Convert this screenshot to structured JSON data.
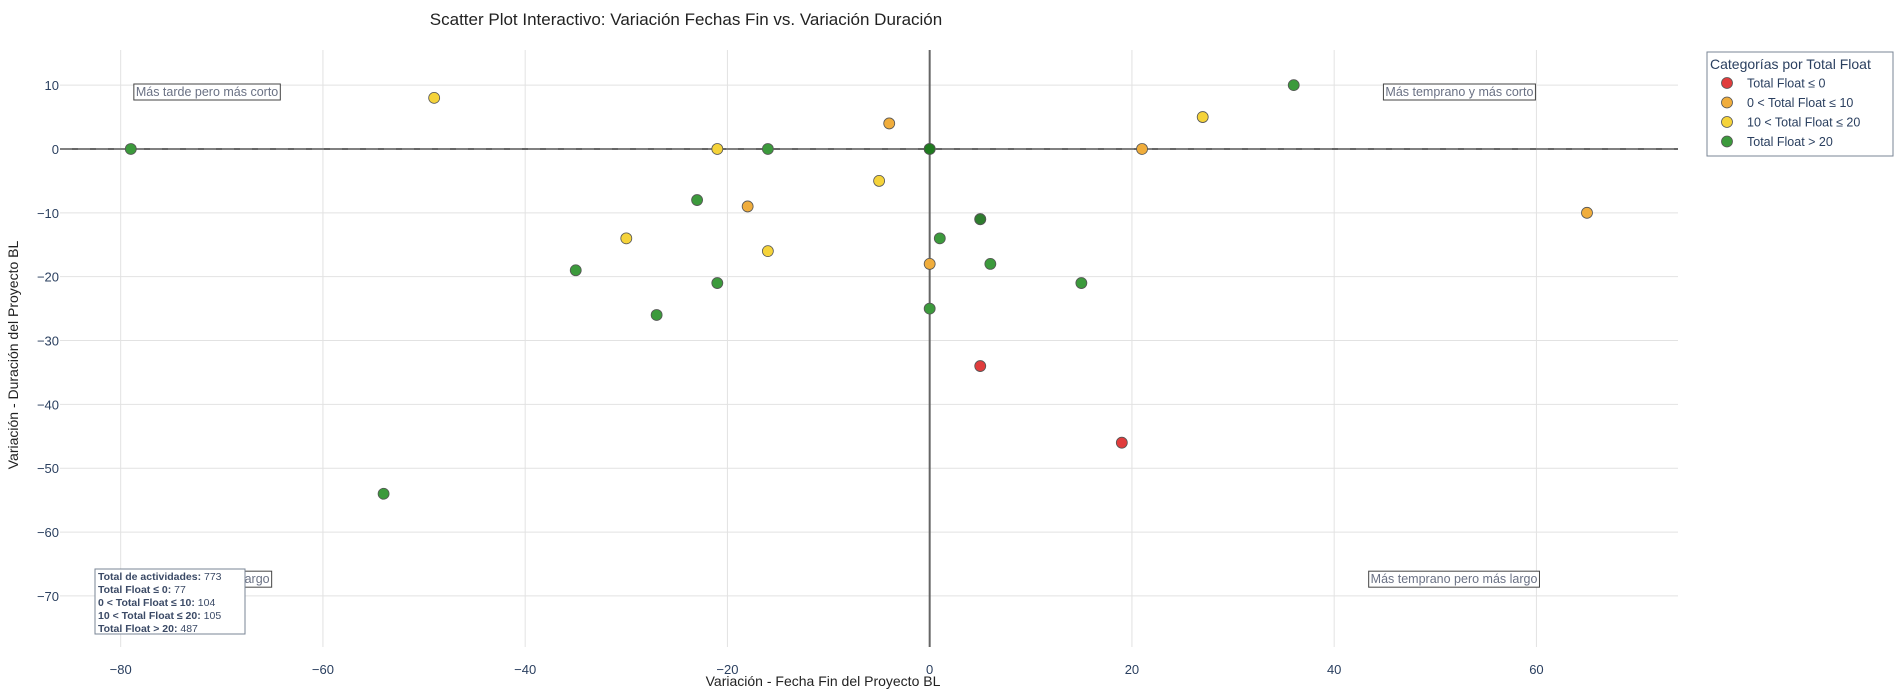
{
  "chart_data": {
    "type": "scatter",
    "title": "Scatter Plot Interactivo: Variación Fechas Fin vs. Variación Duración",
    "xlabel": "Variación - Fecha Fin del Proyecto BL",
    "ylabel": "Variación - Duración del Proyecto BL",
    "xlim": [
      -86,
      74
    ],
    "ylim": [
      -78,
      15.5
    ],
    "x_ticks": [
      -80,
      -60,
      -40,
      -20,
      0,
      20,
      40,
      60
    ],
    "y_ticks": [
      10,
      0,
      -10,
      -20,
      -30,
      -40,
      -50,
      -60,
      -70
    ],
    "grid": true,
    "legend_position": "right",
    "legend_title": "Categorías por Total Float",
    "series": [
      {
        "name": "Total Float ≤ 0",
        "color": "#e03c3c",
        "points": [
          [
            5,
            -34
          ],
          [
            19,
            -46
          ]
        ]
      },
      {
        "name": "0 < Total Float ≤ 10",
        "color": "#f0ad3c",
        "points": [
          [
            -4,
            4
          ],
          [
            -18,
            -9
          ],
          [
            21,
            0
          ],
          [
            65,
            -10
          ],
          [
            0,
            -18
          ]
        ]
      },
      {
        "name": "10 < Total Float ≤ 20",
        "color": "#f5d33a",
        "points": [
          [
            -49,
            8
          ],
          [
            -21,
            0
          ],
          [
            -5,
            -5
          ],
          [
            -30,
            -14
          ],
          [
            -16,
            -16
          ],
          [
            27,
            5
          ]
        ]
      },
      {
        "name": "Total Float > 20",
        "color": "#3c9a3c",
        "points": [
          [
            -79,
            0
          ],
          [
            -16,
            0
          ],
          [
            0,
            0
          ],
          [
            -23,
            -8
          ],
          [
            -35,
            -19
          ],
          [
            -21,
            -21
          ],
          [
            -27,
            -26
          ],
          [
            -54,
            -54
          ],
          [
            5,
            -11
          ],
          [
            1,
            -14
          ],
          [
            6,
            -18
          ],
          [
            15,
            -21
          ],
          [
            0,
            -25
          ],
          [
            36,
            10
          ]
        ]
      }
    ],
    "quadrant_labels": {
      "top_left": "Más tarde pero más corto",
      "top_right": "Más temprano y más corto",
      "bottom_left": "Más tarde y más largo",
      "bottom_right": "Más temprano pero más largo"
    },
    "summary": [
      {
        "label": "Total de actividades:",
        "value": "773"
      },
      {
        "label": "Total Float ≤ 0:",
        "value": "77"
      },
      {
        "label": "0 < Total Float ≤ 10:",
        "value": "104"
      },
      {
        "label": "10 < Total Float ≤ 20:",
        "value": "105"
      },
      {
        "label": "Total Float > 20:",
        "value": "487"
      }
    ]
  }
}
